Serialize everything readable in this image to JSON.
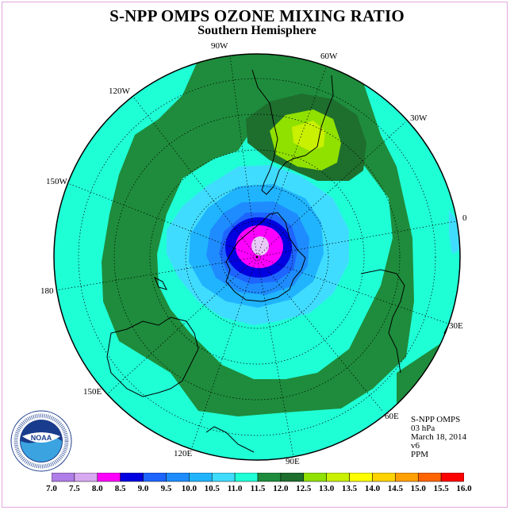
{
  "title": "S-NPP OMPS OZONE MIXING RATIO",
  "subtitle": "Southern Hemisphere",
  "longitude_labels": [
    "90W",
    "60W",
    "120W",
    "30W",
    "150W",
    "0",
    "180",
    "30E",
    "150E",
    "60E",
    "120E",
    "90E"
  ],
  "info": {
    "instrument": "S-NPP OMPS",
    "level": "03 hPa",
    "date": "March 18, 2014",
    "version": "v6",
    "units": "PPM"
  },
  "colorbar": {
    "ticks": [
      "7.0",
      "7.5",
      "8.0",
      "8.5",
      "9.0",
      "9.5",
      "10.0",
      "10.5",
      "11.0",
      "11.5",
      "12.0",
      "12.5",
      "13.0",
      "13.5",
      "14.0",
      "14.5",
      "15.0",
      "15.5",
      "16.0"
    ],
    "colors": [
      "#b07ee8",
      "#d8a8f0",
      "#ff00ff",
      "#0000e0",
      "#1e64ff",
      "#1e8cff",
      "#20b4ff",
      "#40dcff",
      "#1fffd6",
      "#1e8c3c",
      "#1e6e2e",
      "#90e000",
      "#c8f000",
      "#ffff00",
      "#ffd200",
      "#ffa000",
      "#ff6400",
      "#ff0000",
      "#8b5a3c"
    ]
  },
  "colors": {
    "ocean_ring_outer": "#1fffd6",
    "band_green": "#1e8c3c",
    "dark_green": "#1e6e2e",
    "core_magenta": "#ff00ff"
  },
  "logo": {
    "text": "NOAA",
    "ring_text": "NATIONAL OCEANIC AND ATMOSPHERIC ADMINISTRATION • U.S. DEPARTMENT OF COMMERCE"
  }
}
